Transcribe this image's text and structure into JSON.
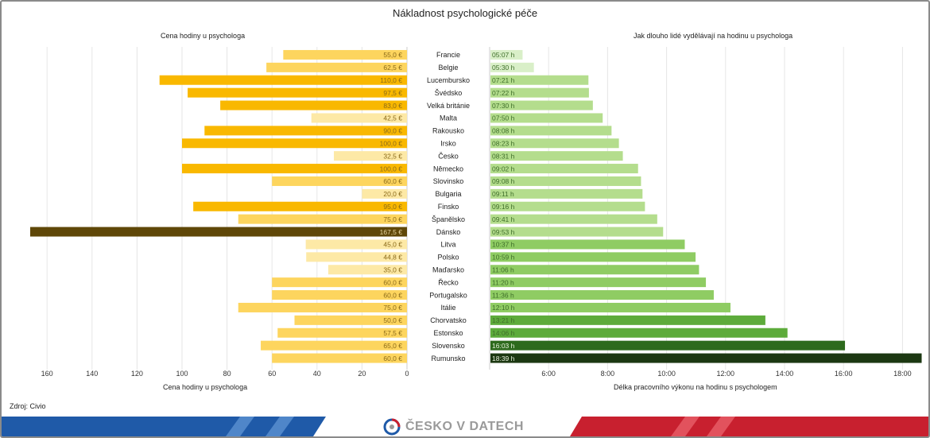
{
  "page": {
    "title": "Nákladnost psychologické péče",
    "left_subtitle": "Cena hodiny u psychologa",
    "right_subtitle": "Jak dlouho lidé vydělávají na hodinu u psychologa",
    "source": "Zdroj: Civio",
    "brand": "ČESKO V DATECH"
  },
  "colors": {
    "price_light": "#fde9a6",
    "price_mid": "#fdd55e",
    "price_strong": "#f9b800",
    "price_extreme": "#5f4708",
    "time_pale": "#d9efc8",
    "time_light": "#b4dd8d",
    "time_mid": "#8fcc63",
    "time_strong": "#5dab3b",
    "time_dark": "#2d6a1d",
    "time_darkest": "#1c3812",
    "banner_blue": "#1f5aa8",
    "banner_red": "#c8202f"
  },
  "chart_data": [
    {
      "type": "bar",
      "orientation": "horizontal",
      "title": "Cena hodiny u psychologa",
      "xlabel": "Cena hodiny u psychologa",
      "xlim": [
        0,
        170
      ],
      "x_reversed": true,
      "ticks": [
        "160",
        "140",
        "120",
        "100",
        "80",
        "60",
        "40",
        "20",
        "0"
      ],
      "grid": true,
      "categories": [
        "Francie",
        "Belgie",
        "Lucembursko",
        "Švédsko",
        "Velká británie",
        "Malta",
        "Rakousko",
        "Irsko",
        "Česko",
        "Německo",
        "Slovinsko",
        "Bulgaria",
        "Finsko",
        "Španělsko",
        "Dánsko",
        "Litva",
        "Polsko",
        "Maďarsko",
        "Řecko",
        "Portugalsko",
        "Itálie",
        "Chorvatsko",
        "Estonsko",
        "Slovensko",
        "Rumunsko"
      ],
      "values": [
        55.0,
        62.5,
        110.0,
        97.5,
        83.0,
        42.5,
        90.0,
        100.0,
        32.5,
        100.0,
        60.0,
        20.0,
        95.0,
        75.0,
        167.5,
        45.0,
        44.8,
        35.0,
        60.0,
        60.0,
        75.0,
        50.0,
        57.5,
        65.0,
        60.0
      ],
      "labels": [
        "55,0 €",
        "62,5 €",
        "110,0 €",
        "97,5 €",
        "83,0 €",
        "42,5 €",
        "90,0 €",
        "100,0 €",
        "32,5 €",
        "100,0 €",
        "60,0 €",
        "20,0 €",
        "95,0 €",
        "75,0 €",
        "167,5 €",
        "45,0 €",
        "44,8 €",
        "35,0 €",
        "60,0 €",
        "60,0 €",
        "75,0 €",
        "50,0 €",
        "57,5 €",
        "65,0 €",
        "60,0 €"
      ]
    },
    {
      "type": "bar",
      "orientation": "horizontal",
      "title": "Jak dlouho lidé vydělávají na hodinu u psychologa",
      "xlabel": "Délka pracovního výkonu na hodinu s psychologem",
      "xlim": [
        "04:00",
        "18:40"
      ],
      "ticks": [
        "6:00",
        "8:00",
        "10:00",
        "12:00",
        "14:00",
        "16:00",
        "18:00"
      ],
      "grid": true,
      "categories": [
        "Francie",
        "Belgie",
        "Lucembursko",
        "Švédsko",
        "Velká británie",
        "Malta",
        "Rakousko",
        "Irsko",
        "Česko",
        "Německo",
        "Slovinsko",
        "Bulgaria",
        "Finsko",
        "Španělsko",
        "Dánsko",
        "Litva",
        "Polsko",
        "Maďarsko",
        "Řecko",
        "Portugalsko",
        "Itálie",
        "Chorvatsko",
        "Estonsko",
        "Slovensko",
        "Rumunsko"
      ],
      "values": [
        "05:07",
        "05:30",
        "07:21",
        "07:22",
        "07:30",
        "07:50",
        "08:08",
        "08:23",
        "08:31",
        "09:02",
        "09:08",
        "09:11",
        "09:16",
        "09:41",
        "09:53",
        "10:37",
        "10:59",
        "11:06",
        "11:20",
        "11:36",
        "12:10",
        "13:21",
        "14:06",
        "16:03",
        "18:39"
      ],
      "labels": [
        "05:07 h",
        "05:30 h",
        "07:21 h",
        "07:22 h",
        "07:30 h",
        "07:50 h",
        "08:08 h",
        "08:23 h",
        "08:31 h",
        "09:02 h",
        "09:08 h",
        "09:11 h",
        "09:16 h",
        "09:41 h",
        "09:53 h",
        "10:37 h",
        "10:59 h",
        "11:06 h",
        "11:20 h",
        "11:36 h",
        "12:10 h",
        "13:21 h",
        "14:06 h",
        "16:03 h",
        "18:39 h"
      ]
    }
  ]
}
